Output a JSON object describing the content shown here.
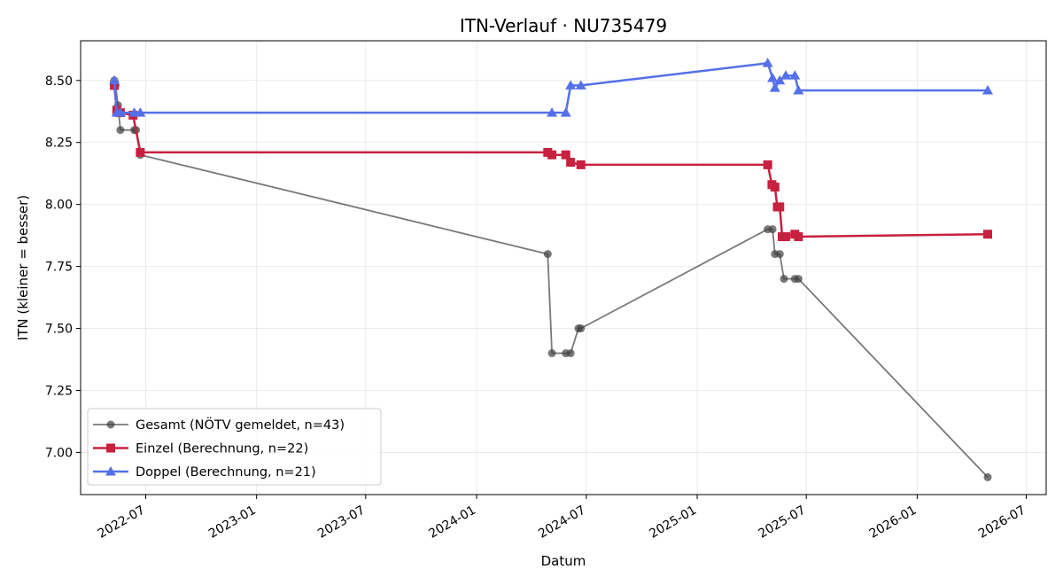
{
  "chart_data": {
    "type": "line",
    "title": "ITN-Verlauf · NU735479",
    "xlabel": "Datum",
    "ylabel": "ITN  (kleiner = besser)",
    "x_type": "date",
    "xlim": [
      "2022-03-15",
      "2026-08-03"
    ],
    "ylim": [
      6.83,
      8.66
    ],
    "x_ticks": [
      "2022-07-01",
      "2023-01-01",
      "2023-07-01",
      "2024-01-01",
      "2024-07-01",
      "2025-01-01",
      "2025-07-01",
      "2026-01-01",
      "2026-07-01"
    ],
    "x_tick_labels": [
      "2022-07",
      "2023-01",
      "2023-07",
      "2024-01",
      "2024-07",
      "2025-01",
      "2025-07",
      "2026-01",
      "2026-07"
    ],
    "y_ticks": [
      7.0,
      7.25,
      7.5,
      7.75,
      8.0,
      8.25,
      8.5
    ],
    "y_tick_labels": [
      "7.00",
      "7.25",
      "7.50",
      "7.75",
      "8.00",
      "8.25",
      "8.50"
    ],
    "grid": true,
    "legend_position": "lower-left",
    "series": [
      {
        "name": "Gesamt (NÖTV gemeldet, n=43)",
        "color": "#404040",
        "marker": "circle",
        "x": [
          "2022-05-10",
          "2022-05-12",
          "2022-05-16",
          "2022-05-20",
          "2022-06-12",
          "2022-06-15",
          "2022-06-22",
          "2024-04-28",
          "2024-05-05",
          "2024-05-28",
          "2024-06-05",
          "2024-06-18",
          "2024-06-22",
          "2025-04-28",
          "2025-05-06",
          "2025-05-10",
          "2025-05-18",
          "2025-05-25",
          "2025-06-12",
          "2025-06-18",
          "2026-04-28"
        ],
        "values": [
          8.5,
          8.48,
          8.4,
          8.3,
          8.3,
          8.3,
          8.2,
          7.8,
          7.4,
          7.4,
          7.4,
          7.5,
          7.5,
          7.9,
          7.9,
          7.8,
          7.8,
          7.7,
          7.7,
          7.7,
          6.9
        ]
      },
      {
        "name": "Einzel (Berechnung, n=22)",
        "color": "#c8203f",
        "marker": "square",
        "x": [
          "2022-05-10",
          "2022-05-14",
          "2022-05-20",
          "2022-06-10",
          "2022-06-22",
          "2024-04-28",
          "2024-05-05",
          "2024-05-28",
          "2024-06-05",
          "2024-06-22",
          "2025-04-28",
          "2025-05-05",
          "2025-05-10",
          "2025-05-14",
          "2025-05-18",
          "2025-05-22",
          "2025-05-28",
          "2025-06-12",
          "2025-06-18",
          "2026-04-28"
        ],
        "values": [
          8.48,
          8.38,
          8.37,
          8.36,
          8.21,
          8.21,
          8.2,
          8.2,
          8.17,
          8.16,
          8.16,
          8.08,
          8.07,
          7.99,
          7.99,
          7.87,
          7.87,
          7.88,
          7.87,
          7.88
        ]
      },
      {
        "name": "Doppel (Berechnung, n=21)",
        "color": "#5470e8",
        "marker": "triangle",
        "x": [
          "2022-05-10",
          "2022-05-14",
          "2022-05-20",
          "2022-06-12",
          "2022-06-22",
          "2024-05-05",
          "2024-05-28",
          "2024-06-05",
          "2024-06-22",
          "2025-04-28",
          "2025-05-06",
          "2025-05-10",
          "2025-05-18",
          "2025-05-28",
          "2025-06-12",
          "2025-06-18",
          "2026-04-28"
        ],
        "values": [
          8.5,
          8.37,
          8.37,
          8.37,
          8.37,
          8.37,
          8.37,
          8.48,
          8.48,
          8.57,
          8.51,
          8.47,
          8.5,
          8.52,
          8.52,
          8.46,
          8.46
        ]
      }
    ]
  }
}
